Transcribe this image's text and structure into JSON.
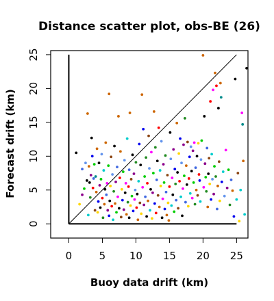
{
  "chart_data": {
    "type": "scatter",
    "title": "Distance scatter plot, obs-BE (26)",
    "xlabel": "Buoy data drift (km)",
    "ylabel": "Forecast drift (km)",
    "xlim": [
      -2.7,
      26.7
    ],
    "ylim": [
      -2.1,
      25.6
    ],
    "xticks": [
      0,
      5,
      10,
      15,
      20,
      25
    ],
    "yticks": [
      0,
      5,
      10,
      15,
      20,
      25
    ],
    "grid": false,
    "legend": "none",
    "reference_lines": [
      {
        "kind": "vertical-axis",
        "x": 0,
        "y_from": 0,
        "y_to": 25
      },
      {
        "kind": "horizontal-axis",
        "y": 0,
        "x_from": 0,
        "x_to": 25
      },
      {
        "kind": "one-to-one",
        "x_from": 0,
        "x_to": 25
      }
    ],
    "points": [
      {
        "x": 1.1,
        "y": 10.5,
        "color": "#000000"
      },
      {
        "x": 1.6,
        "y": 2.9,
        "color": "#ffd700"
      },
      {
        "x": 2.0,
        "y": 4.3,
        "color": "#8b008b"
      },
      {
        "x": 2.0,
        "y": 8.1,
        "color": "#4169e1"
      },
      {
        "x": 2.3,
        "y": 5.2,
        "color": "#00cd00"
      },
      {
        "x": 2.5,
        "y": 9.0,
        "color": "#6495ed"
      },
      {
        "x": 2.7,
        "y": 6.4,
        "color": "#000000"
      },
      {
        "x": 2.8,
        "y": 16.3,
        "color": "#cd6600"
      },
      {
        "x": 2.9,
        "y": 1.3,
        "color": "#00cdcd"
      },
      {
        "x": 3.0,
        "y": 8.5,
        "color": "#cd6600"
      },
      {
        "x": 3.1,
        "y": 6.1,
        "color": "#000000"
      },
      {
        "x": 3.2,
        "y": 3.9,
        "color": "#228b22"
      },
      {
        "x": 3.3,
        "y": 7.2,
        "color": "#8b008b"
      },
      {
        "x": 3.4,
        "y": 12.7,
        "color": "#000000"
      },
      {
        "x": 3.5,
        "y": 10.0,
        "color": "#0000ee"
      },
      {
        "x": 3.6,
        "y": 5.3,
        "color": "#ff0000"
      },
      {
        "x": 3.7,
        "y": 6.7,
        "color": "#4169e1"
      },
      {
        "x": 3.8,
        "y": 8.8,
        "color": "#00cd00"
      },
      {
        "x": 3.9,
        "y": 2.0,
        "color": "#8b4513"
      },
      {
        "x": 4.0,
        "y": 7.0,
        "color": "#008b8b"
      },
      {
        "x": 4.1,
        "y": 4.7,
        "color": "#cd6600"
      },
      {
        "x": 4.2,
        "y": 11.1,
        "color": "#cd6600"
      },
      {
        "x": 4.3,
        "y": 1.7,
        "color": "#ffd700"
      },
      {
        "x": 4.4,
        "y": 3.3,
        "color": "#0000ee"
      },
      {
        "x": 4.5,
        "y": 9.0,
        "color": "#000000"
      },
      {
        "x": 4.6,
        "y": 5.7,
        "color": "#8b008b"
      },
      {
        "x": 4.7,
        "y": 2.4,
        "color": "#000000"
      },
      {
        "x": 4.8,
        "y": 6.6,
        "color": "#00cd00"
      },
      {
        "x": 4.9,
        "y": 10.3,
        "color": "#6495ed"
      },
      {
        "x": 5.0,
        "y": 3.8,
        "color": "#ff0000"
      },
      {
        "x": 5.1,
        "y": 0.9,
        "color": "#228b22"
      },
      {
        "x": 5.2,
        "y": 7.9,
        "color": "#00cdcd"
      },
      {
        "x": 5.3,
        "y": 2.9,
        "color": "#cd6600"
      },
      {
        "x": 5.4,
        "y": 5.1,
        "color": "#000000"
      },
      {
        "x": 5.5,
        "y": 12.0,
        "color": "#cd6600"
      },
      {
        "x": 5.6,
        "y": 4.3,
        "color": "#4169e1"
      },
      {
        "x": 5.7,
        "y": 6.0,
        "color": "#ff00ff"
      },
      {
        "x": 5.8,
        "y": 2.0,
        "color": "#8b008b"
      },
      {
        "x": 5.9,
        "y": 8.6,
        "color": "#00cd00"
      },
      {
        "x": 6.0,
        "y": 1.2,
        "color": "#0000ee"
      },
      {
        "x": 6.0,
        "y": 19.2,
        "color": "#cd6600"
      },
      {
        "x": 6.1,
        "y": 3.4,
        "color": "#000000"
      },
      {
        "x": 6.2,
        "y": 5.6,
        "color": "#ffd700"
      },
      {
        "x": 6.3,
        "y": 9.9,
        "color": "#8b4513"
      },
      {
        "x": 6.4,
        "y": 2.6,
        "color": "#ff0000"
      },
      {
        "x": 6.5,
        "y": 7.3,
        "color": "#6495ed"
      },
      {
        "x": 6.6,
        "y": 0.6,
        "color": "#00cdcd"
      },
      {
        "x": 6.7,
        "y": 4.8,
        "color": "#228b22"
      },
      {
        "x": 6.8,
        "y": 11.5,
        "color": "#000000"
      },
      {
        "x": 6.9,
        "y": 3.0,
        "color": "#cd6600"
      },
      {
        "x": 7.0,
        "y": 6.2,
        "color": "#8b008b"
      },
      {
        "x": 7.1,
        "y": 1.7,
        "color": "#00cd00"
      },
      {
        "x": 7.2,
        "y": 8.4,
        "color": "#4169e1"
      },
      {
        "x": 7.3,
        "y": 4.0,
        "color": "#ff00ff"
      },
      {
        "x": 7.4,
        "y": 15.9,
        "color": "#cd6600"
      },
      {
        "x": 7.5,
        "y": 2.3,
        "color": "#000000"
      },
      {
        "x": 7.6,
        "y": 6.8,
        "color": "#ff0000"
      },
      {
        "x": 7.7,
        "y": 10.7,
        "color": "#cd6600"
      },
      {
        "x": 7.8,
        "y": 1.0,
        "color": "#8b4513"
      },
      {
        "x": 7.9,
        "y": 5.1,
        "color": "#ffd700"
      },
      {
        "x": 8.0,
        "y": 3.5,
        "color": "#0000ee"
      },
      {
        "x": 8.1,
        "y": 7.7,
        "color": "#00cd00"
      },
      {
        "x": 8.2,
        "y": 2.1,
        "color": "#8b008b"
      },
      {
        "x": 8.3,
        "y": 9.4,
        "color": "#6495ed"
      },
      {
        "x": 8.4,
        "y": 4.6,
        "color": "#000000"
      },
      {
        "x": 8.5,
        "y": 6.0,
        "color": "#ff00ff"
      },
      {
        "x": 8.6,
        "y": 1.4,
        "color": "#cd6600"
      },
      {
        "x": 8.7,
        "y": 12.6,
        "color": "#00cdcd"
      },
      {
        "x": 8.8,
        "y": 3.2,
        "color": "#228b22"
      },
      {
        "x": 8.9,
        "y": 5.5,
        "color": "#ff0000"
      },
      {
        "x": 9.0,
        "y": 8.0,
        "color": "#4169e1"
      },
      {
        "x": 9.0,
        "y": 0.9,
        "color": "#000000"
      },
      {
        "x": 9.1,
        "y": 16.4,
        "color": "#cd6600"
      },
      {
        "x": 9.2,
        "y": 2.7,
        "color": "#ffd700"
      },
      {
        "x": 9.3,
        "y": 6.6,
        "color": "#8b4513"
      },
      {
        "x": 9.4,
        "y": 4.1,
        "color": "#00cd00"
      },
      {
        "x": 9.5,
        "y": 10.2,
        "color": "#000000"
      },
      {
        "x": 9.6,
        "y": 1.9,
        "color": "#0000ee"
      },
      {
        "x": 9.7,
        "y": 7.4,
        "color": "#8b008b"
      },
      {
        "x": 9.8,
        "y": 3.6,
        "color": "#ff00ff"
      },
      {
        "x": 9.9,
        "y": 5.0,
        "color": "#6495ed"
      },
      {
        "x": 10.0,
        "y": 9.1,
        "color": "#228b22"
      },
      {
        "x": 10.1,
        "y": 2.4,
        "color": "#ff0000"
      },
      {
        "x": 10.2,
        "y": 4.4,
        "color": "#000000"
      },
      {
        "x": 10.3,
        "y": 0.6,
        "color": "#cd6600"
      },
      {
        "x": 10.4,
        "y": 6.3,
        "color": "#00cdcd"
      },
      {
        "x": 10.5,
        "y": 11.8,
        "color": "#0000ee"
      },
      {
        "x": 10.6,
        "y": 3.1,
        "color": "#8b4513"
      },
      {
        "x": 10.7,
        "y": 8.7,
        "color": "#000000"
      },
      {
        "x": 10.8,
        "y": 1.5,
        "color": "#ffd700"
      },
      {
        "x": 10.9,
        "y": 19.1,
        "color": "#cd6600"
      },
      {
        "x": 11.0,
        "y": 5.4,
        "color": "#ff00ff"
      },
      {
        "x": 11.1,
        "y": 14.0,
        "color": "#0000ee"
      },
      {
        "x": 11.2,
        "y": 2.8,
        "color": "#8b008b"
      },
      {
        "x": 11.3,
        "y": 7.0,
        "color": "#00cd00"
      },
      {
        "x": 11.4,
        "y": 4.0,
        "color": "#4169e1"
      },
      {
        "x": 11.5,
        "y": 9.8,
        "color": "#228b22"
      },
      {
        "x": 11.6,
        "y": 1.1,
        "color": "#000000"
      },
      {
        "x": 11.7,
        "y": 6.0,
        "color": "#ff0000"
      },
      {
        "x": 11.8,
        "y": 3.4,
        "color": "#cd6600"
      },
      {
        "x": 11.9,
        "y": 13.0,
        "color": "#8b4513"
      },
      {
        "x": 12.0,
        "y": 8.2,
        "color": "#6495ed"
      },
      {
        "x": 12.1,
        "y": 2.0,
        "color": "#00cdcd"
      },
      {
        "x": 12.2,
        "y": 5.1,
        "color": "#000000"
      },
      {
        "x": 12.3,
        "y": 10.6,
        "color": "#ff00ff"
      },
      {
        "x": 12.4,
        "y": 0.8,
        "color": "#ffd700"
      },
      {
        "x": 12.5,
        "y": 4.6,
        "color": "#8b008b"
      },
      {
        "x": 12.6,
        "y": 7.5,
        "color": "#00cd00"
      },
      {
        "x": 12.7,
        "y": 16.6,
        "color": "#cd6600"
      },
      {
        "x": 12.8,
        "y": 3.0,
        "color": "#0000ee"
      },
      {
        "x": 12.9,
        "y": 11.3,
        "color": "#228b22"
      },
      {
        "x": 13.0,
        "y": 1.6,
        "color": "#ff0000"
      },
      {
        "x": 13.1,
        "y": 6.5,
        "color": "#4169e1"
      },
      {
        "x": 13.2,
        "y": 9.3,
        "color": "#000000"
      },
      {
        "x": 13.3,
        "y": 4.2,
        "color": "#8b4513"
      },
      {
        "x": 13.4,
        "y": 14.2,
        "color": "#ff0000"
      },
      {
        "x": 13.5,
        "y": 2.5,
        "color": "#cd6600"
      },
      {
        "x": 13.6,
        "y": 7.9,
        "color": "#00cdcd"
      },
      {
        "x": 13.7,
        "y": 5.6,
        "color": "#ffd700"
      },
      {
        "x": 13.8,
        "y": 12.2,
        "color": "#6495ed"
      },
      {
        "x": 13.9,
        "y": 0.9,
        "color": "#000000"
      },
      {
        "x": 14.0,
        "y": 3.7,
        "color": "#ff00ff"
      },
      {
        "x": 14.1,
        "y": 8.8,
        "color": "#8b008b"
      },
      {
        "x": 14.2,
        "y": 6.1,
        "color": "#00cd00"
      },
      {
        "x": 14.3,
        "y": 2.2,
        "color": "#0000ee"
      },
      {
        "x": 14.4,
        "y": 10.1,
        "color": "#228b22"
      },
      {
        "x": 14.5,
        "y": 4.7,
        "color": "#4169e1"
      },
      {
        "x": 14.6,
        "y": 1.3,
        "color": "#cd6600"
      },
      {
        "x": 14.7,
        "y": 7.2,
        "color": "#8b4513"
      },
      {
        "x": 14.8,
        "y": 3.1,
        "color": "#ffd700"
      },
      {
        "x": 14.9,
        "y": 0.5,
        "color": "#cd6600"
      },
      {
        "x": 15.0,
        "y": 5.5,
        "color": "#ff0000"
      },
      {
        "x": 15.1,
        "y": 13.5,
        "color": "#000000"
      },
      {
        "x": 15.2,
        "y": 9.6,
        "color": "#6495ed"
      },
      {
        "x": 15.3,
        "y": 2.7,
        "color": "#00cdcd"
      },
      {
        "x": 15.4,
        "y": 6.8,
        "color": "#ff00ff"
      },
      {
        "x": 15.5,
        "y": 4.3,
        "color": "#000000"
      },
      {
        "x": 15.6,
        "y": 11.0,
        "color": "#8b008b"
      },
      {
        "x": 15.7,
        "y": 1.8,
        "color": "#00cd00"
      },
      {
        "x": 15.8,
        "y": 8.1,
        "color": "#0000ee"
      },
      {
        "x": 15.9,
        "y": 5.9,
        "color": "#228b22"
      },
      {
        "x": 16.0,
        "y": 3.5,
        "color": "#4169e1"
      },
      {
        "x": 16.1,
        "y": 14.9,
        "color": "#cd6600"
      },
      {
        "x": 16.2,
        "y": 7.6,
        "color": "#000000"
      },
      {
        "x": 16.3,
        "y": 2.3,
        "color": "#8b4513"
      },
      {
        "x": 16.4,
        "y": 10.4,
        "color": "#ffd700"
      },
      {
        "x": 16.5,
        "y": 6.3,
        "color": "#ff0000"
      },
      {
        "x": 16.6,
        "y": 12.6,
        "color": "#0000ee"
      },
      {
        "x": 16.7,
        "y": 4.0,
        "color": "#00cdcd"
      },
      {
        "x": 16.8,
        "y": 9.0,
        "color": "#6495ed"
      },
      {
        "x": 16.9,
        "y": 1.2,
        "color": "#000000"
      },
      {
        "x": 17.0,
        "y": 5.2,
        "color": "#ff00ff"
      },
      {
        "x": 17.1,
        "y": 11.7,
        "color": "#8b008b"
      },
      {
        "x": 17.2,
        "y": 7.1,
        "color": "#00cd00"
      },
      {
        "x": 17.3,
        "y": 15.6,
        "color": "#228b22"
      },
      {
        "x": 17.4,
        "y": 3.2,
        "color": "#4169e1"
      },
      {
        "x": 17.5,
        "y": 8.6,
        "color": "#cd6600"
      },
      {
        "x": 17.6,
        "y": 5.8,
        "color": "#000000"
      },
      {
        "x": 17.7,
        "y": 12.1,
        "color": "#8b4513"
      },
      {
        "x": 17.8,
        "y": 2.6,
        "color": "#ffd700"
      },
      {
        "x": 17.9,
        "y": 6.7,
        "color": "#ff0000"
      },
      {
        "x": 18.0,
        "y": 9.9,
        "color": "#0000ee"
      },
      {
        "x": 18.1,
        "y": 4.5,
        "color": "#00cdcd"
      },
      {
        "x": 18.2,
        "y": 11.4,
        "color": "#6495ed"
      },
      {
        "x": 18.3,
        "y": 7.8,
        "color": "#000000"
      },
      {
        "x": 18.4,
        "y": 3.8,
        "color": "#ff00ff"
      },
      {
        "x": 18.5,
        "y": 10.8,
        "color": "#8b008b"
      },
      {
        "x": 18.6,
        "y": 6.1,
        "color": "#00cd00"
      },
      {
        "x": 18.7,
        "y": 12.0,
        "color": "#ff00ff"
      },
      {
        "x": 18.8,
        "y": 2.9,
        "color": "#228b22"
      },
      {
        "x": 18.9,
        "y": 8.3,
        "color": "#4169e1"
      },
      {
        "x": 19.0,
        "y": 5.0,
        "color": "#cd6600"
      },
      {
        "x": 19.1,
        "y": 10.0,
        "color": "#000000"
      },
      {
        "x": 19.2,
        "y": 4.2,
        "color": "#8b4513"
      },
      {
        "x": 19.3,
        "y": 11.9,
        "color": "#ffd700"
      },
      {
        "x": 19.4,
        "y": 7.3,
        "color": "#ff0000"
      },
      {
        "x": 19.5,
        "y": 6.4,
        "color": "#0000ee"
      },
      {
        "x": 19.6,
        "y": 3.3,
        "color": "#00cdcd"
      },
      {
        "x": 19.7,
        "y": 9.5,
        "color": "#6495ed"
      },
      {
        "x": 19.8,
        "y": 12.3,
        "color": "#00cd00"
      },
      {
        "x": 20.0,
        "y": 24.9,
        "color": "#cd6600"
      },
      {
        "x": 20.1,
        "y": 5.4,
        "color": "#ff00ff"
      },
      {
        "x": 20.2,
        "y": 15.9,
        "color": "#000000"
      },
      {
        "x": 20.3,
        "y": 8.9,
        "color": "#8b008b"
      },
      {
        "x": 20.4,
        "y": 6.9,
        "color": "#00cd00"
      },
      {
        "x": 20.5,
        "y": 4.8,
        "color": "#228b22"
      },
      {
        "x": 20.6,
        "y": 11.2,
        "color": "#4169e1"
      },
      {
        "x": 20.7,
        "y": 2.5,
        "color": "#cd6600"
      },
      {
        "x": 20.8,
        "y": 7.4,
        "color": "#000000"
      },
      {
        "x": 20.9,
        "y": 9.7,
        "color": "#8b4513"
      },
      {
        "x": 21.0,
        "y": 5.9,
        "color": "#ffd700"
      },
      {
        "x": 21.1,
        "y": 18.1,
        "color": "#ff0000"
      },
      {
        "x": 21.2,
        "y": 3.6,
        "color": "#0000ee"
      },
      {
        "x": 21.3,
        "y": 10.3,
        "color": "#00cdcd"
      },
      {
        "x": 21.4,
        "y": 6.6,
        "color": "#6495ed"
      },
      {
        "x": 21.5,
        "y": 19.8,
        "color": "#ff00ff"
      },
      {
        "x": 21.6,
        "y": 4.4,
        "color": "#8b008b"
      },
      {
        "x": 21.7,
        "y": 8.5,
        "color": "#00cd00"
      },
      {
        "x": 21.8,
        "y": 22.3,
        "color": "#cd6600"
      },
      {
        "x": 21.9,
        "y": 7.0,
        "color": "#228b22"
      },
      {
        "x": 22.0,
        "y": 20.4,
        "color": "#ff0000"
      },
      {
        "x": 22.1,
        "y": 2.2,
        "color": "#4169e1"
      },
      {
        "x": 22.2,
        "y": 5.6,
        "color": "#cd6600"
      },
      {
        "x": 22.3,
        "y": 17.1,
        "color": "#000000"
      },
      {
        "x": 22.4,
        "y": 9.2,
        "color": "#8b4513"
      },
      {
        "x": 22.5,
        "y": 3.4,
        "color": "#ffd700"
      },
      {
        "x": 22.6,
        "y": 20.8,
        "color": "#cd6600"
      },
      {
        "x": 22.7,
        "y": 18.7,
        "color": "#008b8b"
      },
      {
        "x": 22.8,
        "y": 6.2,
        "color": "#0000ee"
      },
      {
        "x": 23.0,
        "y": 7.7,
        "color": "#00cdcd"
      },
      {
        "x": 23.2,
        "y": 4.1,
        "color": "#6495ed"
      },
      {
        "x": 23.4,
        "y": 10.9,
        "color": "#ff00ff"
      },
      {
        "x": 23.6,
        "y": 5.3,
        "color": "#8b008b"
      },
      {
        "x": 23.8,
        "y": 8.0,
        "color": "#00cd00"
      },
      {
        "x": 24.0,
        "y": 2.8,
        "color": "#228b22"
      },
      {
        "x": 24.2,
        "y": 6.5,
        "color": "#4169e1"
      },
      {
        "x": 24.4,
        "y": 4.9,
        "color": "#cd6600"
      },
      {
        "x": 24.6,
        "y": 1.1,
        "color": "#0000ee"
      },
      {
        "x": 24.8,
        "y": 21.4,
        "color": "#000000"
      },
      {
        "x": 25.0,
        "y": 3.6,
        "color": "#00cdcd"
      },
      {
        "x": 25.2,
        "y": 7.5,
        "color": "#8b4513"
      },
      {
        "x": 25.4,
        "y": 0.4,
        "color": "#ffd700"
      },
      {
        "x": 25.6,
        "y": 5.0,
        "color": "#00cdcd"
      },
      {
        "x": 25.8,
        "y": 16.4,
        "color": "#ff00ff"
      },
      {
        "x": 25.9,
        "y": 14.7,
        "color": "#008b8b"
      },
      {
        "x": 26.0,
        "y": 9.3,
        "color": "#cd6600"
      },
      {
        "x": 26.2,
        "y": 1.4,
        "color": "#00cdcd"
      },
      {
        "x": 26.5,
        "y": 23.0,
        "color": "#000000"
      }
    ]
  }
}
